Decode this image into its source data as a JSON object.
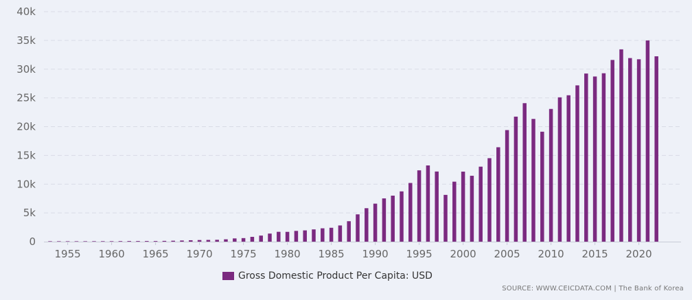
{
  "colors": {
    "bar": "#7b2a80",
    "grid": "#d9dce6",
    "background": "#eef1f8"
  },
  "source": "SOURCE: WWW.CEICDATA.COM | The Bank of Korea",
  "chart_data": {
    "type": "bar",
    "x": [
      1953,
      1954,
      1955,
      1956,
      1957,
      1958,
      1959,
      1960,
      1961,
      1962,
      1963,
      1964,
      1965,
      1966,
      1967,
      1968,
      1969,
      1970,
      1971,
      1972,
      1973,
      1974,
      1975,
      1976,
      1977,
      1978,
      1979,
      1980,
      1981,
      1982,
      1983,
      1984,
      1985,
      1986,
      1987,
      1988,
      1989,
      1990,
      1991,
      1992,
      1993,
      1994,
      1995,
      1996,
      1997,
      1998,
      1999,
      2000,
      2001,
      2002,
      2003,
      2004,
      2005,
      2006,
      2007,
      2008,
      2009,
      2010,
      2011,
      2012,
      2013,
      2014,
      2015,
      2016,
      2017,
      2018,
      2019,
      2020,
      2021,
      2022
    ],
    "series": [
      {
        "name": "Gross Domestic Product Per Capita: USD",
        "values": [
          66,
          70,
          65,
          66,
          74,
          80,
          81,
          79,
          94,
          106,
          106,
          110,
          108,
          133,
          161,
          198,
          243,
          279,
          301,
          323,
          407,
          563,
          616,
          834,
          1055,
          1405,
          1711,
          1704,
          1870,
          1959,
          2131,
          2320,
          2414,
          2816,
          3555,
          4748,
          5817,
          6610,
          7523,
          8001,
          8741,
          10206,
          12404,
          13254,
          12197,
          8134,
          10432,
          12179,
          11458,
          13044,
          14517,
          16419,
          19402,
          21743,
          24086,
          21345,
          19122,
          23079,
          25097,
          25459,
          27180,
          29241,
          28724,
          29288,
          31601,
          33447,
          31929,
          31721,
          34998,
          32237
        ]
      }
    ],
    "xticks": [
      1955,
      1960,
      1965,
      1970,
      1975,
      1980,
      1985,
      1990,
      1995,
      2000,
      2005,
      2010,
      2015,
      2020
    ],
    "yticks": [
      0,
      5000,
      10000,
      15000,
      20000,
      25000,
      30000,
      35000,
      40000
    ],
    "ytick_labels": [
      "0",
      "5k",
      "10k",
      "15k",
      "20k",
      "25k",
      "30k",
      "35k",
      "40k"
    ],
    "ylim": [
      0,
      40000
    ],
    "grid": true,
    "legend_position": "bottom-center"
  }
}
